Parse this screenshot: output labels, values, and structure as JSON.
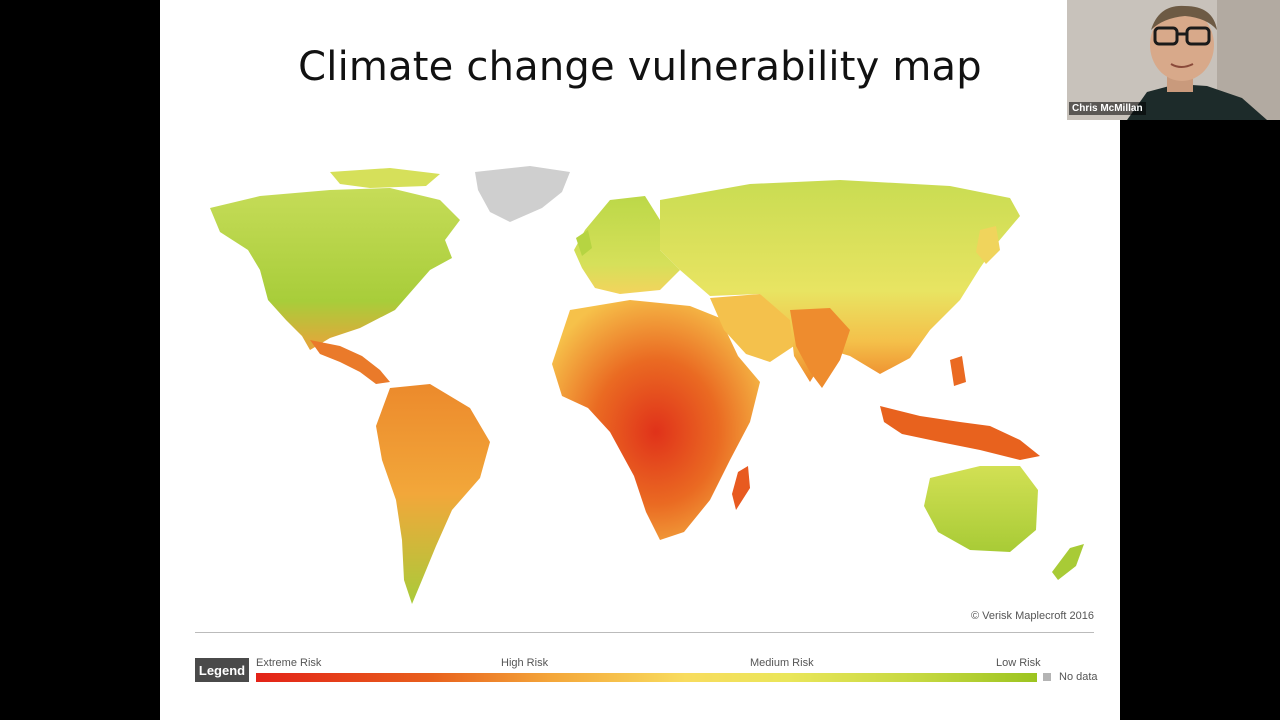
{
  "slide": {
    "title": "Climate change vulnerability map",
    "copyright": "© Verisk Maplecroft 2016"
  },
  "legend": {
    "label": "Legend",
    "extreme": "Extreme Risk",
    "high": "High Risk",
    "medium": "Medium Risk",
    "low": "Low Risk",
    "nodata": "No data",
    "colors": {
      "extreme": "#e32218",
      "high": "#f0932e",
      "medium": "#f2e45e",
      "low": "#9cc420",
      "nodata": "#b4b4b4"
    }
  },
  "participant": {
    "name": "Chris McMillan"
  }
}
